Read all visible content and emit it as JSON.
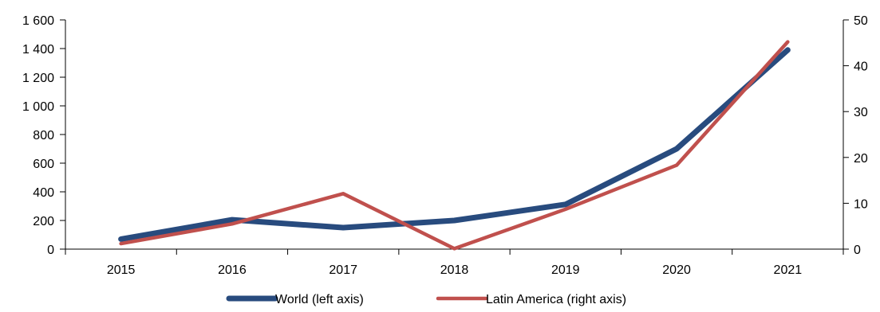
{
  "chart_data": {
    "type": "line",
    "title": "",
    "xlabel": "",
    "ylabel": "",
    "categories": [
      "2015",
      "2016",
      "2017",
      "2018",
      "2019",
      "2020",
      "2021"
    ],
    "y_left": {
      "range": [
        0,
        1600
      ],
      "ticks": [
        0,
        200,
        400,
        600,
        800,
        1000,
        1200,
        1400,
        1600
      ],
      "tick_labels": [
        "0",
        "200",
        "400",
        "600",
        "800",
        "1 000",
        "1 200",
        "1 400",
        "1 600"
      ]
    },
    "y_right": {
      "range": [
        0,
        50
      ],
      "ticks": [
        0,
        10,
        20,
        30,
        40,
        50
      ],
      "tick_labels": [
        "0",
        "10",
        "20",
        "30",
        "40",
        "50"
      ]
    },
    "series": [
      {
        "name": "World (left axis)",
        "axis": "left",
        "color": "#284B7E",
        "values": [
          70,
          205,
          150,
          200,
          312,
          700,
          1390
        ]
      },
      {
        "name": "Latin America (right axis)",
        "axis": "right",
        "color": "#C0504D",
        "values": [
          1.2,
          5.5,
          12.1,
          0.1,
          8.7,
          18.3,
          45.2
        ]
      }
    ],
    "grid": false,
    "legend": "bottom"
  }
}
